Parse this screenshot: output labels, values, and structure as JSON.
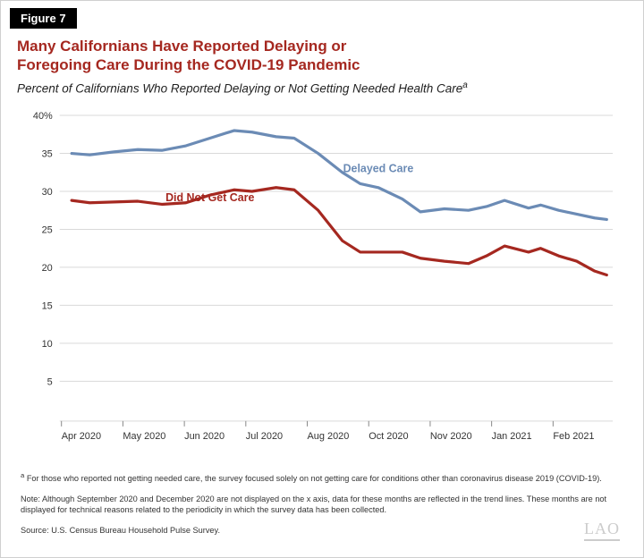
{
  "figure_tag": "Figure 7",
  "title_line1": "Many Californians Have Reported Delaying or",
  "title_line2": "Foregoing Care During the COVID-19 Pandemic",
  "subtitle_prefix": "Percent of Californians Who Reported Delaying or Not Getting Needed Health Care",
  "subtitle_sup": "a",
  "chart": {
    "type": "line",
    "background_color": "#ffffff",
    "grid_color": "#d9d9d9",
    "axis_color": "#888888",
    "tick_font_size": 11,
    "line_width": 3.2,
    "ylim": [
      0,
      40
    ],
    "ytick_step": 5,
    "yticks": [
      5,
      10,
      15,
      20,
      25,
      30,
      35,
      40
    ],
    "ytick_labels": [
      "5",
      "10",
      "15",
      "20",
      "25",
      "30",
      "35",
      "40%"
    ],
    "x_categories": [
      "Apr 2020",
      "May 2020",
      "Jun 2020",
      "Jul 2020",
      "Aug 2020",
      "Oct 2020",
      "Nov 2020",
      "Jan 2021",
      "Feb 2021"
    ],
    "series": [
      {
        "name": "Delayed Care",
        "label": "Delayed Care",
        "color": "#6b8bb5",
        "label_pos": {
          "x": 5.3,
          "y": 32.5
        },
        "points": [
          [
            0.2,
            35.0
          ],
          [
            0.5,
            34.8
          ],
          [
            0.9,
            35.2
          ],
          [
            1.3,
            35.5
          ],
          [
            1.7,
            35.4
          ],
          [
            2.1,
            36.0
          ],
          [
            2.5,
            37.0
          ],
          [
            2.9,
            38.0
          ],
          [
            3.2,
            37.8
          ],
          [
            3.6,
            37.2
          ],
          [
            3.9,
            37.0
          ],
          [
            4.3,
            35.0
          ],
          [
            4.7,
            32.5
          ],
          [
            5.0,
            31.0
          ],
          [
            5.3,
            30.5
          ],
          [
            5.7,
            29.0
          ],
          [
            6.0,
            27.3
          ],
          [
            6.4,
            27.7
          ],
          [
            6.8,
            27.5
          ],
          [
            7.1,
            28.0
          ],
          [
            7.4,
            28.8
          ],
          [
            7.8,
            27.8
          ],
          [
            8.0,
            28.2
          ],
          [
            8.3,
            27.5
          ],
          [
            8.6,
            27.0
          ],
          [
            8.9,
            26.5
          ],
          [
            9.1,
            26.3
          ]
        ]
      },
      {
        "name": "Did Not Get Care",
        "label": "Did Not Get Care",
        "color": "#a52820",
        "label_pos": {
          "x": 2.5,
          "y": 28.7
        },
        "points": [
          [
            0.2,
            28.8
          ],
          [
            0.5,
            28.5
          ],
          [
            0.9,
            28.6
          ],
          [
            1.3,
            28.7
          ],
          [
            1.7,
            28.3
          ],
          [
            2.1,
            28.5
          ],
          [
            2.5,
            29.5
          ],
          [
            2.9,
            30.2
          ],
          [
            3.2,
            30.0
          ],
          [
            3.6,
            30.5
          ],
          [
            3.9,
            30.2
          ],
          [
            4.3,
            27.5
          ],
          [
            4.7,
            23.5
          ],
          [
            5.0,
            22.0
          ],
          [
            5.3,
            22.0
          ],
          [
            5.7,
            22.0
          ],
          [
            6.0,
            21.2
          ],
          [
            6.4,
            20.8
          ],
          [
            6.8,
            20.5
          ],
          [
            7.1,
            21.5
          ],
          [
            7.4,
            22.8
          ],
          [
            7.8,
            22.0
          ],
          [
            8.0,
            22.5
          ],
          [
            8.3,
            21.5
          ],
          [
            8.6,
            20.8
          ],
          [
            8.9,
            19.5
          ],
          [
            9.1,
            19.0
          ]
        ]
      }
    ]
  },
  "footnote_a_sup": "a",
  "footnote_a": " For those who reported not getting needed care, the survey focused solely on not getting care for conditions other than coronavirus disease 2019 (COVID-19).",
  "footnote_note": "Note: Although September 2020 and December 2020 are not displayed on the x axis, data for these months are reflected in the trend lines. These months are not displayed for technical reasons related to the periodicity in which the survey data has been collected.",
  "footnote_source": "Source: U.S. Census Bureau Household Pulse Survey.",
  "watermark": "LAO"
}
